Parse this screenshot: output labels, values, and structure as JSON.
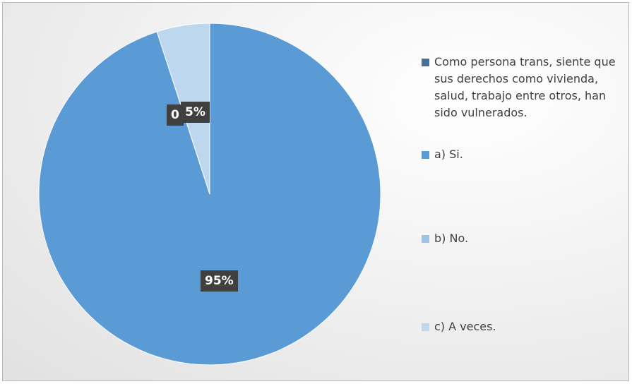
{
  "chart_data": {
    "type": "pie",
    "title": "",
    "categories": [
      "Como persona trans, siente que sus derechos como vivienda, salud, trabajo entre otros, han sido vulnerados.",
      "a) Si.",
      "b) No.",
      "c) A veces."
    ],
    "values": [
      0,
      95,
      0,
      5
    ],
    "data_labels": [
      "0",
      "95%",
      "",
      "5%"
    ],
    "colors": [
      "#41719c",
      "#5b9bd5",
      "#9dc3e6",
      "#bdd7ee"
    ],
    "legend_position": "right"
  }
}
